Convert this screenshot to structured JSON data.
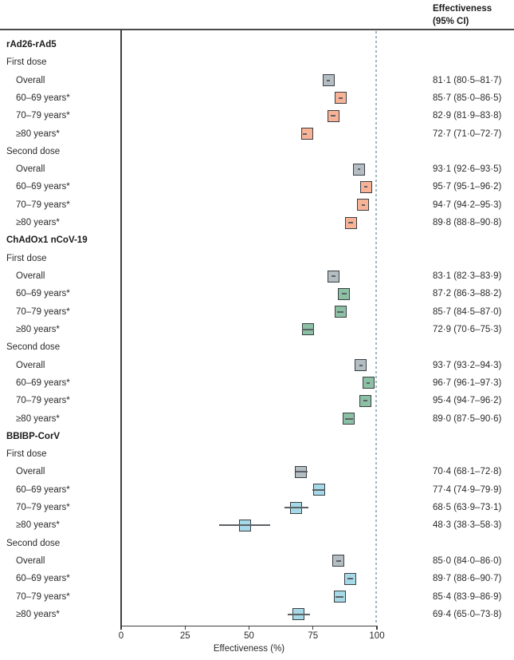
{
  "colors": {
    "overall": "#b4bdc2",
    "rad26": "#f8b295",
    "chadox": "#8cc0a4",
    "bbibp": "#a6d9e7",
    "box_border": "#383e42",
    "whisker": "#5c6165",
    "reference_dash": "#9db6bf",
    "rule": "#4a4a4a"
  },
  "chart_data": {
    "type": "scatter",
    "subtype": "forest-plot",
    "xlabel": "Effectiveness (%)",
    "x_ticks": [
      0,
      25,
      50,
      75,
      100
    ],
    "xlim": [
      0,
      100
    ],
    "reference_line_x": 100,
    "grid": false,
    "value_column_header": [
      "Effectiveness",
      "(95% CI)"
    ],
    "groups": [
      {
        "heading": "rAd26-rAd5",
        "doses": [
          {
            "label": "First dose",
            "rows": [
              {
                "label": "Overall",
                "estimate": 81.1,
                "ci_low": 80.5,
                "ci_high": 81.7,
                "display": "81·1 (80·5–81·7)",
                "color_key": "overall"
              },
              {
                "label": "60–69 years*",
                "estimate": 85.7,
                "ci_low": 85.0,
                "ci_high": 86.5,
                "display": "85·7 (85·0–86·5)",
                "color_key": "rad26"
              },
              {
                "label": "70–79 years*",
                "estimate": 82.9,
                "ci_low": 81.9,
                "ci_high": 83.8,
                "display": "82·9 (81·9–83·8)",
                "color_key": "rad26"
              },
              {
                "label": "≥80 years*",
                "estimate": 72.7,
                "ci_low": 71.0,
                "ci_high": 72.7,
                "display": "72·7 (71·0–72·7)",
                "color_key": "rad26"
              }
            ]
          },
          {
            "label": "Second dose",
            "rows": [
              {
                "label": "Overall",
                "estimate": 93.1,
                "ci_low": 92.6,
                "ci_high": 93.5,
                "display": "93·1 (92·6–93·5)",
                "color_key": "overall"
              },
              {
                "label": "60–69 years*",
                "estimate": 95.7,
                "ci_low": 95.1,
                "ci_high": 96.2,
                "display": "95·7 (95·1–96·2)",
                "color_key": "rad26"
              },
              {
                "label": "70–79 years*",
                "estimate": 94.7,
                "ci_low": 94.2,
                "ci_high": 95.3,
                "display": "94·7 (94·2–95·3)",
                "color_key": "rad26"
              },
              {
                "label": "≥80 years*",
                "estimate": 89.8,
                "ci_low": 88.8,
                "ci_high": 90.8,
                "display": "89·8 (88·8–90·8)",
                "color_key": "rad26"
              }
            ]
          }
        ]
      },
      {
        "heading": "ChAdOx1 nCoV-19",
        "doses": [
          {
            "label": "First dose",
            "rows": [
              {
                "label": "Overall",
                "estimate": 83.1,
                "ci_low": 82.3,
                "ci_high": 83.9,
                "display": "83·1 (82·3–83·9)",
                "color_key": "overall"
              },
              {
                "label": "60–69 years*",
                "estimate": 87.2,
                "ci_low": 86.3,
                "ci_high": 88.2,
                "display": "87·2 (86·3–88·2)",
                "color_key": "chadox"
              },
              {
                "label": "70–79 years*",
                "estimate": 85.7,
                "ci_low": 84.5,
                "ci_high": 87.0,
                "display": "85·7 (84·5–87·0)",
                "color_key": "chadox"
              },
              {
                "label": "≥80 years*",
                "estimate": 72.9,
                "ci_low": 70.6,
                "ci_high": 75.3,
                "display": "72·9 (70·6–75·3)",
                "color_key": "chadox"
              }
            ]
          },
          {
            "label": "Second dose",
            "rows": [
              {
                "label": "Overall",
                "estimate": 93.7,
                "ci_low": 93.2,
                "ci_high": 94.3,
                "display": "93·7 (93·2–94·3)",
                "color_key": "overall"
              },
              {
                "label": "60–69 years*",
                "estimate": 96.7,
                "ci_low": 96.1,
                "ci_high": 97.3,
                "display": "96·7 (96·1–97·3)",
                "color_key": "chadox"
              },
              {
                "label": "70–79 years*",
                "estimate": 95.4,
                "ci_low": 94.7,
                "ci_high": 96.2,
                "display": "95·4 (94·7–96·2)",
                "color_key": "chadox"
              },
              {
                "label": "≥80 years*",
                "estimate": 89.0,
                "ci_low": 87.5,
                "ci_high": 90.6,
                "display": "89·0 (87·5–90·6)",
                "color_key": "chadox"
              }
            ]
          }
        ]
      },
      {
        "heading": "BBIBP-CorV",
        "doses": [
          {
            "label": "First dose",
            "rows": [
              {
                "label": "Overall",
                "estimate": 70.4,
                "ci_low": 68.1,
                "ci_high": 72.8,
                "display": "70·4 (68·1–72·8)",
                "color_key": "overall"
              },
              {
                "label": "60–69 years*",
                "estimate": 77.4,
                "ci_low": 74.9,
                "ci_high": 79.9,
                "display": "77·4 (74·9–79·9)",
                "color_key": "bbibp"
              },
              {
                "label": "70–79 years*",
                "estimate": 68.5,
                "ci_low": 63.9,
                "ci_high": 73.1,
                "display": "68·5 (63·9–73·1)",
                "color_key": "bbibp"
              },
              {
                "label": "≥80 years*",
                "estimate": 48.3,
                "ci_low": 38.3,
                "ci_high": 58.3,
                "display": "48·3 (38·3–58·3)",
                "color_key": "bbibp"
              }
            ]
          },
          {
            "label": "Second dose",
            "rows": [
              {
                "label": "Overall",
                "estimate": 85.0,
                "ci_low": 84.0,
                "ci_high": 86.0,
                "display": "85·0 (84·0–86·0)",
                "color_key": "overall"
              },
              {
                "label": "60–69 years*",
                "estimate": 89.7,
                "ci_low": 88.6,
                "ci_high": 90.7,
                "display": "89·7 (88·6–90·7)",
                "color_key": "bbibp"
              },
              {
                "label": "70–79 years*",
                "estimate": 85.4,
                "ci_low": 83.9,
                "ci_high": 86.9,
                "display": "85·4 (83·9–86·9)",
                "color_key": "bbibp"
              },
              {
                "label": "≥80 years*",
                "estimate": 69.4,
                "ci_low": 65.0,
                "ci_high": 73.8,
                "display": "69·4 (65·0–73·8)",
                "color_key": "bbibp"
              }
            ]
          }
        ]
      }
    ]
  }
}
